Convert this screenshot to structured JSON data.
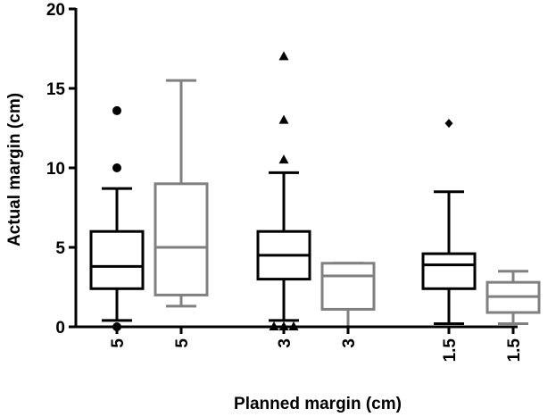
{
  "chart_data": {
    "type": "box",
    "title": "",
    "xlabel": "Planned margin (cm)",
    "ylabel": "Actual margin (cm)",
    "ylim": [
      0,
      20
    ],
    "yticks": [
      0,
      5,
      10,
      15,
      20
    ],
    "grid": false,
    "legend": "none",
    "categories": [
      "5",
      "5",
      "3",
      "3",
      "1.5",
      "1.5"
    ],
    "boxes": [
      {
        "category": "5",
        "style": "dark",
        "whisker_low": 0.4,
        "q1": 2.4,
        "median": 3.8,
        "q3": 6.0,
        "whisker_high": 8.7,
        "outlier_marker": "circle",
        "outliers": [
          13.6,
          10.0,
          0.0
        ]
      },
      {
        "category": "5",
        "style": "light",
        "whisker_low": 1.3,
        "q1": 2.0,
        "median": 5.0,
        "q3": 9.0,
        "whisker_high": 15.5,
        "outlier_marker": "none",
        "outliers": []
      },
      {
        "category": "3",
        "style": "dark",
        "whisker_low": 0.4,
        "q1": 3.0,
        "median": 4.5,
        "q3": 6.0,
        "whisker_high": 9.7,
        "outlier_marker": "triangle",
        "outliers": [
          17.0,
          13.0,
          10.5,
          0.0,
          0.0,
          0.0
        ]
      },
      {
        "category": "3",
        "style": "light",
        "whisker_low": 0.0,
        "q1": 1.1,
        "median": 3.2,
        "q3": 4.0,
        "whisker_high": 4.0,
        "outlier_marker": "none",
        "outliers": []
      },
      {
        "category": "1.5",
        "style": "dark",
        "whisker_low": 0.2,
        "q1": 2.4,
        "median": 3.9,
        "q3": 4.6,
        "whisker_high": 8.5,
        "outlier_marker": "diamond",
        "outliers": [
          12.8
        ]
      },
      {
        "category": "1.5",
        "style": "light",
        "whisker_low": 0.2,
        "q1": 0.9,
        "median": 1.9,
        "q3": 2.8,
        "whisker_high": 3.5,
        "outlier_marker": "none",
        "outliers": []
      }
    ],
    "colors": {
      "dark": "#000000",
      "light": "#808080"
    }
  }
}
